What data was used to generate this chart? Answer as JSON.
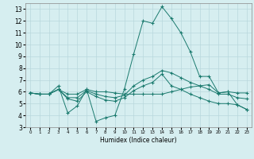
{
  "xlabel": "Humidex (Indice chaleur)",
  "ylabel": "",
  "xlim": [
    -0.5,
    23.5
  ],
  "ylim": [
    3,
    13.5
  ],
  "yticks": [
    3,
    4,
    5,
    6,
    7,
    8,
    9,
    10,
    11,
    12,
    13
  ],
  "xticks": [
    0,
    1,
    2,
    3,
    4,
    5,
    6,
    7,
    8,
    9,
    10,
    11,
    12,
    13,
    14,
    15,
    16,
    17,
    18,
    19,
    20,
    21,
    22,
    23
  ],
  "bg_color": "#d6eef0",
  "line_color": "#1a7a6e",
  "grid_color": "#b8d8dc",
  "series": [
    [
      5.9,
      5.8,
      5.8,
      6.5,
      4.2,
      4.8,
      6.2,
      3.5,
      3.8,
      4.0,
      6.2,
      9.2,
      12.0,
      11.8,
      13.2,
      12.2,
      11.0,
      9.4,
      7.3,
      7.3,
      5.9,
      6.0,
      4.9,
      4.5
    ],
    [
      5.9,
      5.8,
      5.8,
      6.2,
      5.8,
      5.8,
      6.2,
      6.0,
      6.0,
      5.9,
      5.8,
      5.8,
      5.8,
      5.8,
      5.8,
      6.0,
      6.2,
      6.4,
      6.5,
      6.6,
      5.9,
      6.0,
      5.9,
      5.9
    ],
    [
      5.9,
      5.8,
      5.8,
      6.2,
      5.5,
      5.5,
      6.1,
      5.8,
      5.6,
      5.5,
      5.7,
      6.5,
      7.0,
      7.3,
      7.8,
      7.6,
      7.2,
      6.8,
      6.5,
      6.2,
      5.8,
      5.8,
      5.5,
      5.4
    ],
    [
      5.9,
      5.8,
      5.8,
      6.2,
      5.4,
      5.2,
      6.0,
      5.6,
      5.3,
      5.2,
      5.5,
      6.1,
      6.5,
      6.8,
      7.5,
      6.5,
      6.2,
      5.8,
      5.5,
      5.2,
      5.0,
      5.0,
      4.9,
      4.5
    ]
  ]
}
